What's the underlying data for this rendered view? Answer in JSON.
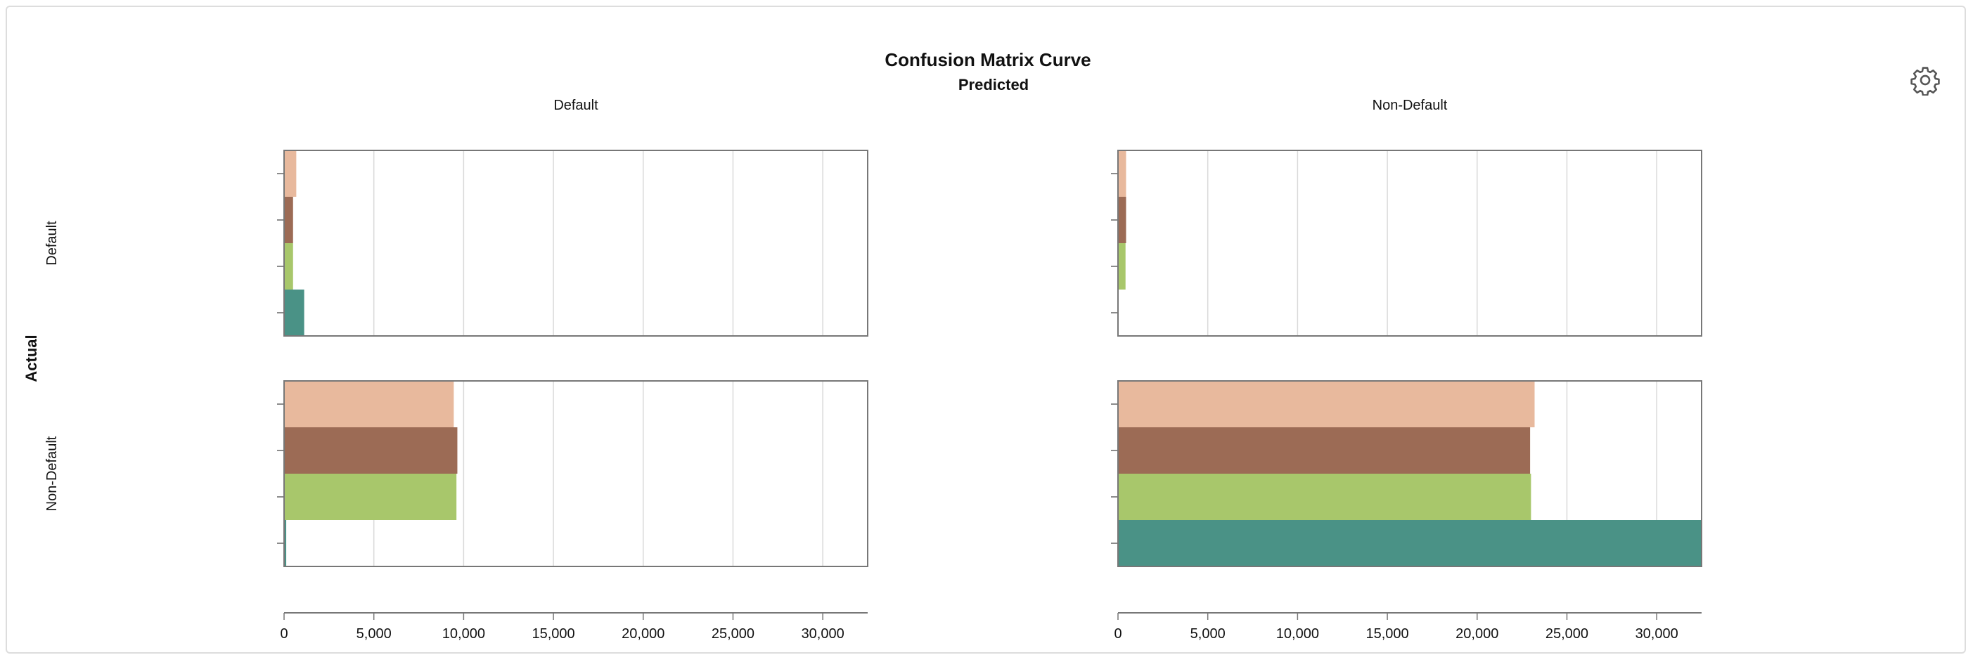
{
  "chart_data": {
    "type": "bar",
    "title": "Confusion Matrix Curve",
    "column_axis_title": "Predicted",
    "row_axis_title": "Actual",
    "columns": [
      "Default",
      "Non-Default"
    ],
    "rows": [
      "Default",
      "Non-Default"
    ],
    "xlim": [
      0,
      32500
    ],
    "x_ticks": [
      0,
      5000,
      10000,
      15000,
      20000,
      25000,
      30000
    ],
    "x_tick_labels": [
      "0",
      "5,000",
      "10,000",
      "15,000",
      "20,000",
      "25,000",
      "30,000"
    ],
    "grid": true,
    "legend": "none",
    "series_colors": [
      "#e8b99d",
      "#9c6b55",
      "#a8c76b",
      "#4a9286"
    ],
    "cells": [
      {
        "row": "Default",
        "col": "Default",
        "values": [
          680,
          500,
          500,
          1120
        ]
      },
      {
        "row": "Default",
        "col": "Non-Default",
        "values": [
          450,
          450,
          420,
          0
        ]
      },
      {
        "row": "Non-Default",
        "col": "Default",
        "values": [
          9450,
          9650,
          9600,
          120
        ]
      },
      {
        "row": "Non-Default",
        "col": "Non-Default",
        "values": [
          23200,
          22950,
          23000,
          32500
        ]
      }
    ]
  },
  "toolbar": {
    "settings_icon": "gear-icon"
  }
}
